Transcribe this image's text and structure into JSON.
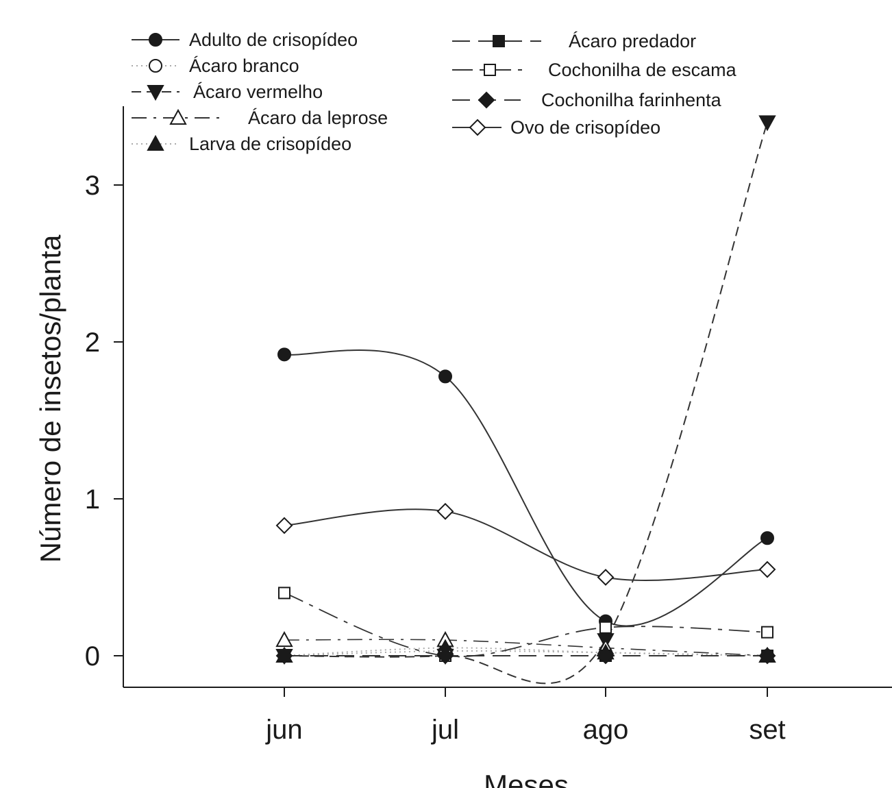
{
  "chart_data": {
    "type": "line",
    "title": "",
    "xlabel": "Meses",
    "ylabel": "Número de insetos/planta",
    "categories": [
      "jun",
      "jul",
      "ago",
      "set"
    ],
    "yticks": [
      "0",
      "1",
      "2",
      "3"
    ],
    "ylim": [
      -0.2,
      3.45
    ],
    "grid": false,
    "legend_position": "top",
    "series": [
      {
        "name": "Adulto de crisopídeo",
        "marker": "circle-filled",
        "line": "solid",
        "values": [
          1.92,
          1.78,
          0.22,
          0.75
        ]
      },
      {
        "name": "Ácaro branco",
        "marker": "circle-open",
        "line": "dotted",
        "values": [
          0,
          0.03,
          0.02,
          0
        ]
      },
      {
        "name": "Ácaro vermelho",
        "marker": "triangle-down-filled",
        "line": "dashed",
        "values": [
          0,
          0,
          0.1,
          3.4
        ]
      },
      {
        "name": "Ácaro da leprose",
        "marker": "triangle-up-open",
        "line": "dash-dot",
        "values": [
          0.1,
          0.1,
          0.05,
          0
        ]
      },
      {
        "name": "Larva de crisopídeo",
        "marker": "triangle-up-filled",
        "line": "dotted",
        "values": [
          0,
          0.05,
          0.02,
          0
        ]
      },
      {
        "name": "Ácaro predador",
        "marker": "square-filled",
        "line": "long-dash",
        "values": [
          0,
          0,
          0,
          0
        ]
      },
      {
        "name": "Cochonilha de escama",
        "marker": "square-open",
        "line": "dash-dot-long",
        "values": [
          0.4,
          0,
          0.18,
          0.15
        ]
      },
      {
        "name": "Cochonilha farinhenta",
        "marker": "diamond-filled",
        "line": "long-dash",
        "values": [
          0,
          0,
          0,
          0
        ]
      },
      {
        "name": "Ovo de crisopídeo",
        "marker": "diamond-open",
        "line": "solid",
        "values": [
          0.83,
          0.92,
          0.5,
          0.55
        ]
      }
    ]
  },
  "colors": {
    "ink": "#1a1a1a",
    "line": "#333333",
    "background": "#ffffff"
  }
}
